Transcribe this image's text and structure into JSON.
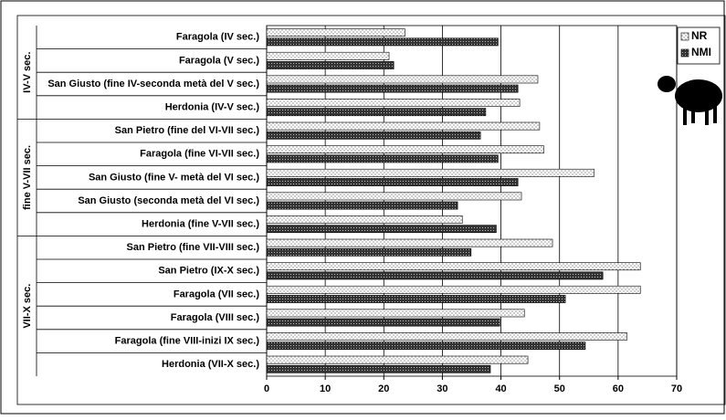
{
  "chart_data": {
    "type": "hbar",
    "groups": [
      {
        "name": "IV-V sec.",
        "categories": [
          "Faragola (IV sec.)",
          "Faragola (V sec.)",
          "San Giusto (fine IV-seconda metà del V sec.)",
          "Herdonia (IV-V sec.)"
        ]
      },
      {
        "name": "fine V-VII sec.",
        "categories": [
          "San Pietro (fine del VI-VII sec.)",
          "Faragola (fine VI-VII sec.)",
          "San Giusto (fine V- metà del VI sec.)",
          "San Giusto (seconda metà del VI sec.)",
          "Herdonia (fine V-VII sec.)"
        ]
      },
      {
        "name": "VII-X sec.",
        "categories": [
          "San Pietro (fine VII-VIII sec.)",
          "San Pietro (IX-X sec.)",
          "Faragola (VII sec.)",
          "Faragola (VIII sec.)",
          "Faragola (fine VIII-inizi IX sec.)",
          "Herdonia (VII-X sec.)"
        ]
      }
    ],
    "series": [
      {
        "name": "NR",
        "color": "#ffffff",
        "values": [
          23.6,
          20.9,
          46.3,
          43.2,
          46.6,
          47.3,
          55.9,
          43.5,
          33.4,
          48.8,
          63.8,
          63.8,
          44.0,
          61.5,
          44.6
        ]
      },
      {
        "name": "NMI",
        "color": "#333333",
        "values": [
          39.5,
          21.7,
          42.9,
          37.4,
          36.5,
          39.5,
          42.9,
          32.6,
          39.2,
          34.9,
          57.4,
          51.0,
          39.8,
          54.4,
          38.2
        ]
      }
    ],
    "xlim": [
      0,
      70
    ],
    "xticks": [
      0,
      10,
      20,
      30,
      40,
      50,
      60,
      70
    ],
    "grid": true,
    "legend": "top-right"
  }
}
